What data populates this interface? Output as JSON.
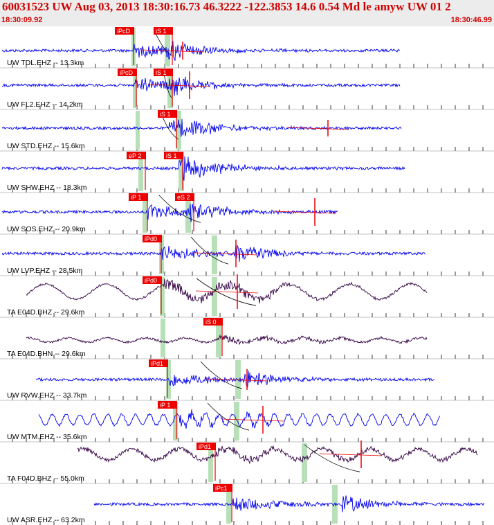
{
  "header": {
    "title": "60031523 UW Aug 03, 2013 18:30:16.73    46.3222 -122.3853 14.6 0.54 Md le amyw UW 01    2",
    "start_time": "18:30:09.92",
    "end_time": "18:30:46.99"
  },
  "colors": {
    "background": "#ffffff",
    "header_bg": "#ececec",
    "header_text": "#d00000",
    "trace_ehz": "#0000ee",
    "trace_broadband": "#330044",
    "pick_label_bg": "#ee0000",
    "pick_window": "#b8e0b8",
    "tick": "#000000"
  },
  "traces": [
    {
      "label": "UW TDL.EHZ -- 13.3km",
      "picks": [
        "iPcD",
        "iS 1"
      ]
    },
    {
      "label": "UW FL2.EHZ -- 14.2km",
      "picks": [
        "iPcD",
        "iS 1"
      ]
    },
    {
      "label": "UW STD.EHZ -- 15.6km",
      "picks": [
        "iS 1"
      ]
    },
    {
      "label": "UW SHW.EHZ -- 18.3km",
      "picks": [
        "eP 2",
        "iS 1"
      ]
    },
    {
      "label": "UW SOS.EHZ -- 20.9km",
      "picks": [
        "iP 1",
        "eS 2"
      ]
    },
    {
      "label": "UW LVP.EHZ -- 28.5km",
      "picks": [
        "iPd0"
      ]
    },
    {
      "label": "TA E04D.BHZ -- 29.6km",
      "picks": [
        "iPd0"
      ]
    },
    {
      "label": "TA E04D.BHN -- 29.6km",
      "picks": [
        "iS 0"
      ]
    },
    {
      "label": "UW RVW.EHZ -- 33.7km",
      "picks": [
        "iPd1"
      ]
    },
    {
      "label": "UW MTM.EHZ -- 35.6km",
      "picks": [
        "iP 1"
      ]
    },
    {
      "label": "TA F04D.BHZ -- 55.0km",
      "picks": [
        "iPd1"
      ]
    },
    {
      "label": "UW ASR.EHZ -- 63.2km",
      "picks": [
        "iPc1"
      ]
    }
  ]
}
